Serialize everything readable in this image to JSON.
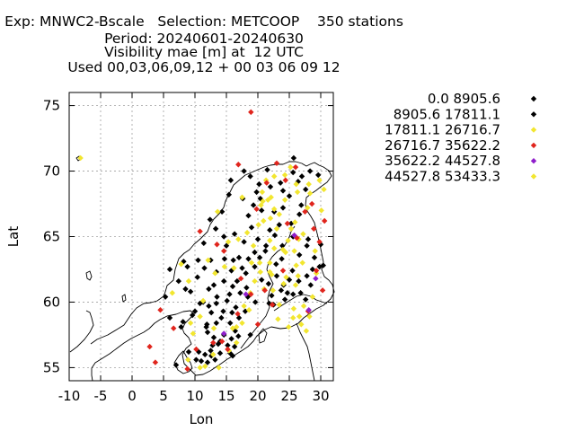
{
  "header": {
    "line1": "Exp: MNWC2-Bscale   Selection: METCOOP    350 stations",
    "line2": "Period: 20240601-20240630",
    "line3": "Visibility mae [m] at  12 UTC",
    "line4": "Used 00,03,06,09,12 + 00 03 06 09 12"
  },
  "chart_data": {
    "type": "scatter",
    "title": "Visibility mae [m] at  12 UTC",
    "xlabel": "Lon",
    "ylabel": "Lat",
    "xlim": [
      -10,
      32
    ],
    "ylim": [
      54,
      76
    ],
    "xticks": [
      -10,
      -5,
      0,
      5,
      10,
      15,
      20,
      25,
      30
    ],
    "yticks": [
      55,
      60,
      65,
      70,
      75
    ],
    "grid": true,
    "legend_position": "right",
    "series": [
      {
        "name": "0.0 8905.6",
        "color": "#000000",
        "points": [
          [
            11.0,
            55.5
          ],
          [
            12.0,
            55.4
          ],
          [
            11.6,
            56.0
          ],
          [
            10.6,
            56.2
          ],
          [
            12.5,
            56.3
          ],
          [
            13.2,
            55.6
          ],
          [
            14.0,
            56.1
          ],
          [
            15.2,
            56.7
          ],
          [
            16.3,
            56.6
          ],
          [
            13.0,
            57.3
          ],
          [
            12.0,
            57.7
          ],
          [
            14.6,
            57.5
          ],
          [
            16.4,
            57.8
          ],
          [
            11.9,
            58.3
          ],
          [
            13.4,
            58.4
          ],
          [
            15.6,
            58.4
          ],
          [
            17.0,
            58.8
          ],
          [
            12.6,
            59.2
          ],
          [
            14.5,
            59.3
          ],
          [
            16.5,
            59.6
          ],
          [
            18.0,
            59.3
          ],
          [
            11.3,
            60.0
          ],
          [
            13.5,
            60.4
          ],
          [
            15.5,
            60.6
          ],
          [
            17.2,
            60.7
          ],
          [
            12.2,
            61.0
          ],
          [
            14.6,
            61.6
          ],
          [
            16.7,
            61.6
          ],
          [
            13.4,
            62.3
          ],
          [
            15.8,
            62.4
          ],
          [
            17.5,
            62.6
          ],
          [
            12.5,
            63.2
          ],
          [
            14.7,
            63.3
          ],
          [
            17.0,
            63.4
          ],
          [
            19.5,
            63.8
          ],
          [
            15.0,
            64.3
          ],
          [
            17.8,
            64.6
          ],
          [
            20.0,
            64.8
          ],
          [
            16.3,
            65.2
          ],
          [
            19.0,
            65.7
          ],
          [
            21.9,
            65.5
          ],
          [
            18.5,
            66.6
          ],
          [
            20.6,
            67.0
          ],
          [
            17.6,
            67.9
          ],
          [
            20.4,
            67.9
          ],
          [
            19.8,
            68.4
          ],
          [
            22.0,
            68.8
          ],
          [
            23.6,
            69.1
          ],
          [
            25.6,
            69.9
          ],
          [
            27.0,
            69.6
          ],
          [
            25.0,
            68.1
          ],
          [
            24.0,
            67.2
          ],
          [
            26.6,
            66.7
          ],
          [
            25.6,
            65.0
          ],
          [
            27.8,
            64.3
          ],
          [
            23.9,
            64.3
          ],
          [
            26.6,
            63.6
          ],
          [
            29.0,
            63.4
          ],
          [
            22.9,
            62.9
          ],
          [
            25.5,
            62.4
          ],
          [
            27.8,
            62.0
          ],
          [
            24.1,
            61.3
          ],
          [
            21.7,
            61.4
          ],
          [
            23.7,
            60.9
          ],
          [
            25.6,
            60.6
          ],
          [
            26.8,
            60.7
          ],
          [
            22.2,
            60.5
          ],
          [
            24.3,
            60.2
          ],
          [
            27.6,
            60.2
          ],
          [
            21.8,
            59.9
          ],
          [
            5.3,
            60.4
          ],
          [
            6.0,
            62.5
          ],
          [
            7.4,
            61.6
          ],
          [
            8.8,
            62.7
          ],
          [
            10.4,
            61.9
          ],
          [
            9.3,
            60.8
          ],
          [
            10.8,
            59.9
          ],
          [
            9.6,
            59.0
          ],
          [
            7.8,
            58.1
          ],
          [
            6.0,
            58.8
          ],
          [
            11.4,
            64.5
          ],
          [
            13.3,
            65.6
          ],
          [
            14.3,
            66.9
          ],
          [
            15.4,
            68.2
          ],
          [
            18.8,
            69.6
          ],
          [
            21.5,
            70.1
          ],
          [
            11.5,
            62.6
          ],
          [
            13.0,
            61.3
          ],
          [
            12.2,
            59.7
          ],
          [
            14.0,
            57.0
          ],
          [
            15.8,
            57.2
          ],
          [
            12.8,
            56.7
          ],
          [
            20.6,
            61.7
          ],
          [
            19.5,
            62.7
          ],
          [
            21.2,
            63.9
          ],
          [
            18.2,
            61.1
          ],
          [
            19.6,
            60.0
          ],
          [
            23.4,
            65.9
          ],
          [
            22.6,
            66.9
          ],
          [
            28.4,
            61.3
          ],
          [
            29.8,
            62.7
          ],
          [
            30.0,
            64.4
          ],
          [
            7.0,
            55.2
          ],
          [
            9.0,
            56.2
          ],
          [
            10.2,
            55.6
          ],
          [
            16.0,
            55.9
          ],
          [
            18.8,
            57.5
          ],
          [
            18.4,
            60.4
          ],
          [
            8.5,
            61.0
          ],
          [
            10.5,
            63.2
          ],
          [
            25.3,
            66.0
          ],
          [
            14.6,
            65.0
          ]
        ]
      },
      {
        "name": "8905.6 17811.1",
        "color": "#000000",
        "points": [
          [
            12.6,
            55.9
          ],
          [
            13.7,
            56.8
          ],
          [
            15.6,
            56.1
          ],
          [
            16.9,
            57.4
          ],
          [
            14.2,
            58.8
          ],
          [
            15.9,
            59.2
          ],
          [
            13.4,
            59.9
          ],
          [
            15.1,
            60.1
          ],
          [
            16.0,
            61.2
          ],
          [
            18.1,
            62.2
          ],
          [
            16.1,
            63.2
          ],
          [
            18.5,
            63.3
          ],
          [
            20.3,
            63.4
          ],
          [
            21.3,
            64.3
          ],
          [
            22.7,
            65.1
          ],
          [
            19.3,
            67.4
          ],
          [
            24.0,
            68.5
          ],
          [
            26.4,
            69.2
          ],
          [
            28.3,
            70.0
          ],
          [
            29.6,
            69.7
          ],
          [
            26.9,
            67.4
          ],
          [
            27.6,
            68.6
          ],
          [
            20.2,
            69.0
          ],
          [
            23.0,
            62.0
          ],
          [
            25.0,
            61.7
          ],
          [
            26.5,
            61.6
          ],
          [
            28.7,
            62.5
          ],
          [
            30.4,
            62.8
          ],
          [
            22.5,
            59.8
          ],
          [
            24.7,
            60.7
          ],
          [
            28.0,
            64.8
          ],
          [
            23.8,
            63.3
          ],
          [
            12.4,
            66.3
          ],
          [
            15.7,
            69.3
          ],
          [
            17.8,
            70.0
          ],
          [
            25.7,
            71.0
          ],
          [
            8.1,
            58.5
          ],
          [
            8.2,
            63.1
          ],
          [
            10.0,
            59.3
          ],
          [
            11.8,
            58.1
          ]
        ]
      },
      {
        "name": "17811.1 26716.7",
        "color": "#f2e630",
        "points": [
          [
            -8.2,
            71.0
          ],
          [
            10.8,
            58.9
          ],
          [
            13.8,
            55.0
          ],
          [
            15.4,
            56.3
          ],
          [
            16.6,
            56.9
          ],
          [
            17.5,
            58.4
          ],
          [
            18.6,
            59.4
          ],
          [
            19.5,
            61.6
          ],
          [
            20.4,
            62.3
          ],
          [
            21.9,
            63.0
          ],
          [
            22.6,
            64.1
          ],
          [
            24.8,
            64.7
          ],
          [
            25.8,
            63.9
          ],
          [
            27.1,
            63.0
          ],
          [
            29.1,
            63.9
          ],
          [
            26.4,
            62.0
          ],
          [
            24.5,
            61.9
          ],
          [
            21.0,
            61.0
          ],
          [
            22.4,
            60.9
          ],
          [
            23.4,
            59.8
          ],
          [
            25.7,
            59.5
          ],
          [
            27.3,
            59.7
          ],
          [
            25.6,
            58.8
          ],
          [
            23.2,
            58.7
          ],
          [
            24.9,
            58.1
          ],
          [
            26.6,
            58.9
          ],
          [
            28.2,
            58.9
          ],
          [
            26.9,
            58.3
          ],
          [
            27.7,
            57.8
          ],
          [
            29.3,
            62.2
          ],
          [
            28.7,
            60.4
          ],
          [
            26.1,
            62.8
          ],
          [
            19.3,
            64.3
          ],
          [
            18.3,
            65.3
          ],
          [
            20.1,
            65.9
          ],
          [
            22.0,
            66.4
          ],
          [
            23.4,
            66.7
          ],
          [
            25.9,
            66.1
          ],
          [
            27.9,
            67.2
          ],
          [
            28.3,
            68.3
          ],
          [
            26.3,
            68.4
          ],
          [
            24.3,
            67.8
          ],
          [
            21.6,
            67.8
          ],
          [
            22.1,
            68.0
          ],
          [
            20.7,
            68.4
          ],
          [
            21.3,
            69.3
          ],
          [
            22.6,
            69.6
          ],
          [
            24.3,
            69.7
          ],
          [
            25.2,
            70.3
          ],
          [
            28.1,
            69.0
          ],
          [
            29.8,
            69.3
          ],
          [
            30.5,
            68.6
          ],
          [
            15.3,
            64.6
          ],
          [
            16.9,
            64.8
          ],
          [
            12.1,
            63.2
          ],
          [
            13.2,
            62.2
          ],
          [
            14.7,
            62.7
          ],
          [
            9.0,
            61.6
          ],
          [
            7.8,
            62.9
          ],
          [
            6.4,
            60.7
          ],
          [
            9.3,
            58.4
          ],
          [
            10.8,
            55.0
          ],
          [
            12.9,
            56.0
          ],
          [
            16.0,
            58.0
          ],
          [
            17.8,
            59.7
          ],
          [
            18.8,
            60.7
          ],
          [
            20.3,
            63.0
          ],
          [
            21.9,
            64.7
          ],
          [
            23.0,
            65.6
          ],
          [
            19.0,
            63.0
          ],
          [
            16.2,
            62.6
          ],
          [
            13.0,
            58.0
          ],
          [
            11.3,
            60.1
          ],
          [
            25.3,
            65.6
          ],
          [
            26.5,
            64.8
          ],
          [
            20.9,
            66.2
          ],
          [
            13.6,
            66.9
          ],
          [
            17.5,
            68.0
          ],
          [
            8.9,
            55.6
          ],
          [
            9.7,
            57.6
          ],
          [
            20.5,
            67.4
          ],
          [
            22.6,
            67.1
          ],
          [
            26.1,
            69.0
          ],
          [
            24.1,
            61.4
          ],
          [
            26.0,
            61.3
          ],
          [
            22.2,
            62.1
          ],
          [
            27.2,
            65.2
          ],
          [
            30.1,
            67.0
          ],
          [
            21.9,
            62.3
          ],
          [
            24.4,
            63.8
          ]
        ]
      },
      {
        "name": "26716.7 35622.2",
        "color": "#e0251d",
        "points": [
          [
            2.8,
            56.6
          ],
          [
            3.7,
            55.4
          ],
          [
            4.5,
            59.4
          ],
          [
            6.6,
            58.0
          ],
          [
            8.8,
            54.9
          ],
          [
            10.2,
            56.4
          ],
          [
            12.9,
            56.9
          ],
          [
            14.3,
            57.0
          ],
          [
            15.2,
            56.4
          ],
          [
            16.8,
            59.1
          ],
          [
            18.9,
            60.6
          ],
          [
            20.0,
            58.3
          ],
          [
            22.3,
            59.8
          ],
          [
            24.0,
            62.4
          ],
          [
            26.2,
            64.9
          ],
          [
            27.5,
            66.9
          ],
          [
            28.6,
            67.5
          ],
          [
            29.8,
            64.6
          ],
          [
            28.9,
            65.6
          ],
          [
            29.3,
            62.4
          ],
          [
            28.0,
            59.3
          ],
          [
            30.3,
            60.9
          ],
          [
            30.6,
            66.2
          ],
          [
            26.0,
            70.3
          ],
          [
            24.4,
            69.3
          ],
          [
            23.0,
            70.6
          ],
          [
            21.4,
            69.1
          ],
          [
            18.9,
            74.5
          ],
          [
            17.3,
            61.8
          ],
          [
            14.6,
            63.9
          ],
          [
            13.5,
            64.4
          ],
          [
            10.8,
            65.4
          ],
          [
            19.8,
            67.1
          ],
          [
            16.9,
            70.5
          ],
          [
            21.1,
            60.9
          ],
          [
            24.7,
            66.0
          ]
        ]
      },
      {
        "name": "35622.2 44527.8",
        "color": "#8f1ecb",
        "points": [
          [
            18.1,
            60.6
          ],
          [
            25.8,
            65.1
          ],
          [
            29.2,
            61.8
          ],
          [
            14.6,
            57.6
          ],
          [
            28.1,
            59.4
          ]
        ]
      },
      {
        "name": "44527.8 53433.3",
        "color": "#f2e630",
        "points": [
          [
            16.6,
            58.1
          ],
          [
            24.0,
            64.0
          ],
          [
            20.8,
            67.7
          ],
          [
            11.6,
            55.1
          ]
        ]
      }
    ]
  }
}
